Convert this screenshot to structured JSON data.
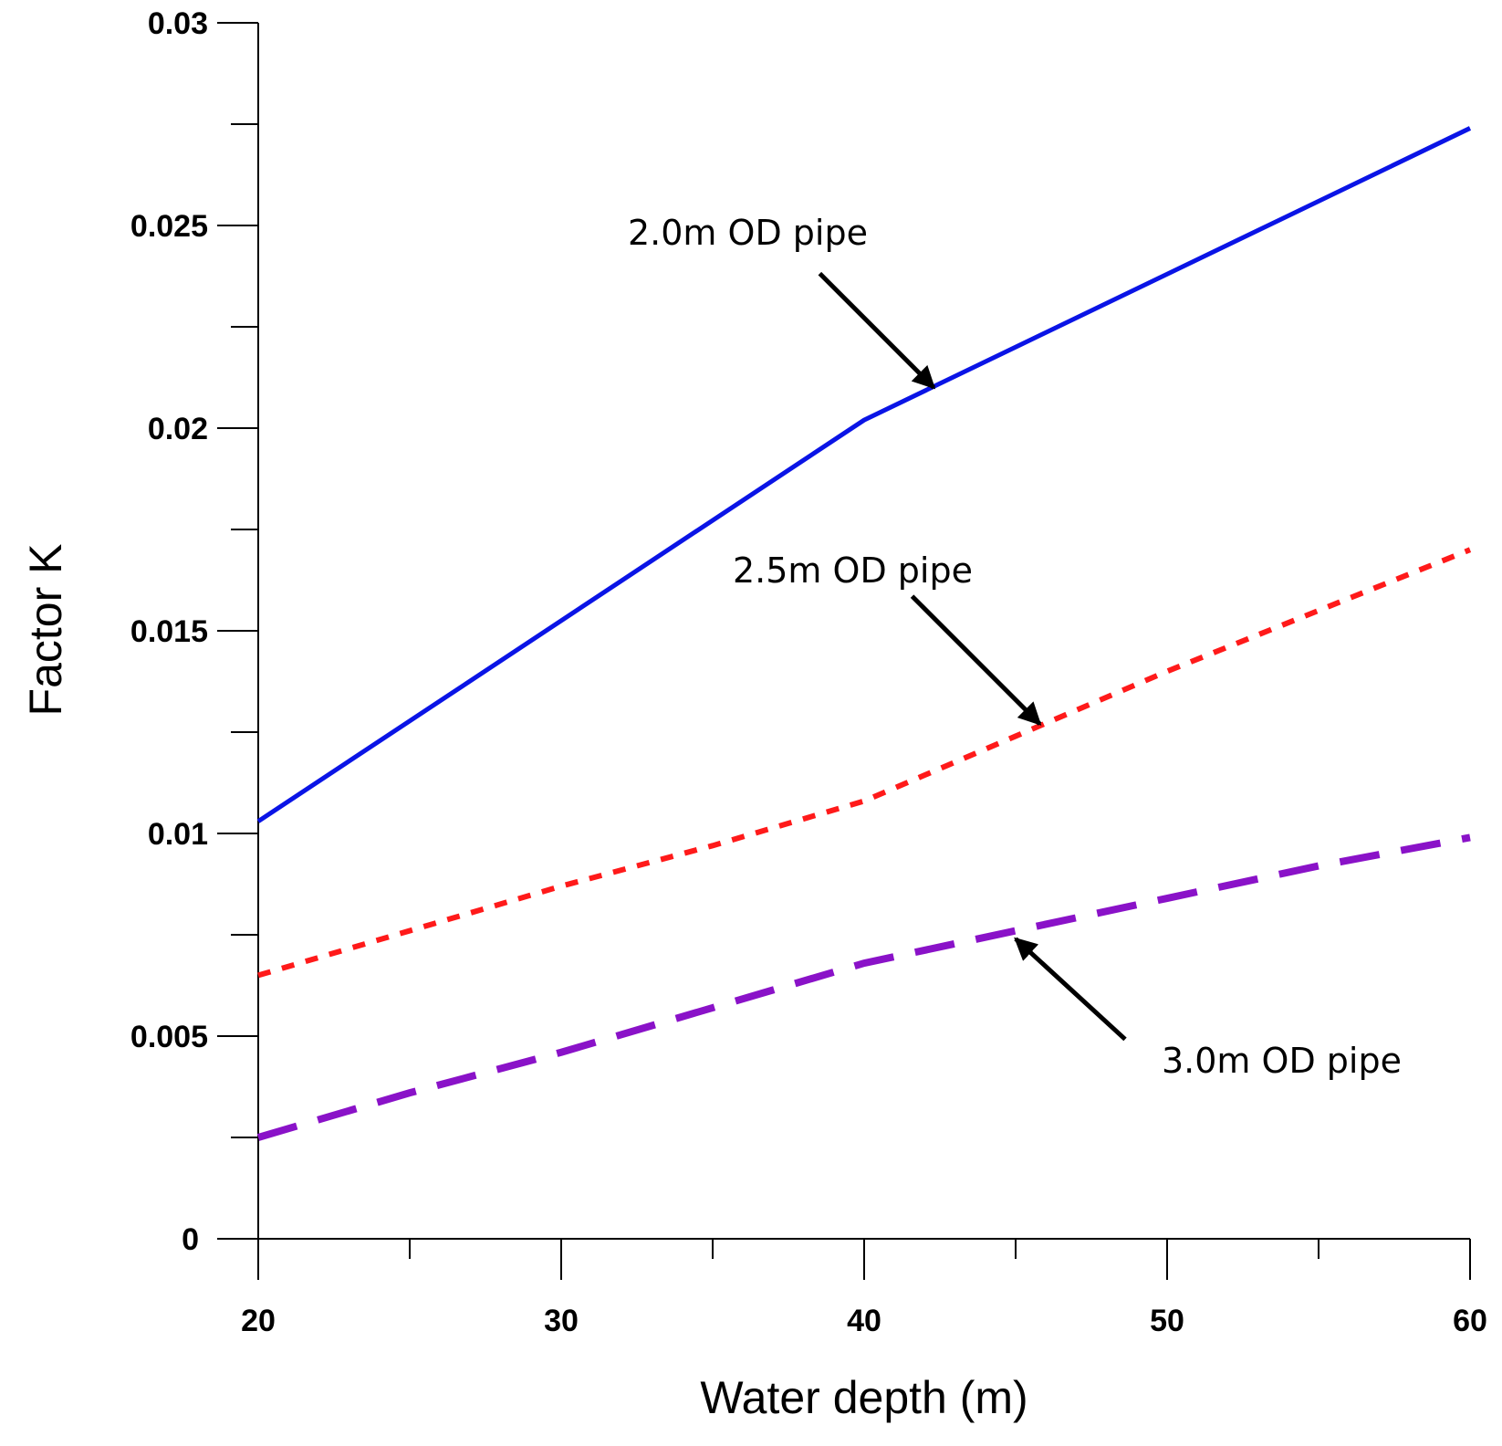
{
  "chart_data": {
    "type": "line",
    "title": "",
    "xlabel": "Water depth (m)",
    "ylabel": "Factor K",
    "xlim": [
      20,
      60
    ],
    "ylim": [
      0,
      0.03
    ],
    "x_ticks": [
      20,
      30,
      40,
      50,
      60
    ],
    "x_tick_labels": [
      "20",
      "30",
      "40",
      "50",
      "60"
    ],
    "y_ticks": [
      0,
      0.005,
      0.01,
      0.015,
      0.02,
      0.025,
      0.03
    ],
    "y_tick_labels": [
      "0",
      "0.005",
      "0.01",
      "0.015",
      "0.02",
      "0.025",
      "0.03"
    ],
    "grid": false,
    "series": [
      {
        "name": "2.0m OD pipe",
        "color": "#0a14e6",
        "style": "solid",
        "x": [
          20,
          40,
          60
        ],
        "y": [
          0.0103,
          0.0202,
          0.0274
        ]
      },
      {
        "name": "2.5m OD pipe",
        "color": "#ff1a1a",
        "style": "dotted",
        "x": [
          20,
          25,
          30,
          35,
          40,
          45,
          50,
          55,
          60
        ],
        "y": [
          0.0065,
          0.0076,
          0.0087,
          0.0097,
          0.0108,
          0.0124,
          0.014,
          0.0155,
          0.017
        ]
      },
      {
        "name": "3.0m OD pipe",
        "color": "#8a12c8",
        "style": "dashed",
        "x": [
          20,
          25,
          30,
          35,
          40,
          45,
          50,
          55,
          60
        ],
        "y": [
          0.0025,
          0.0036,
          0.0046,
          0.0057,
          0.0068,
          0.0076,
          0.0084,
          0.0092,
          0.0099
        ]
      }
    ],
    "annotations": [
      {
        "text": "2.0m OD pipe",
        "series": 0,
        "arrow_x": 42.3,
        "arrow_y": 0.021
      },
      {
        "text": "2.5m OD pipe",
        "series": 1,
        "arrow_x": 45.8,
        "arrow_y": 0.0127
      },
      {
        "text": "3.0m OD pipe",
        "series": 2,
        "arrow_x": 45.0,
        "arrow_y": 0.0074
      }
    ]
  }
}
